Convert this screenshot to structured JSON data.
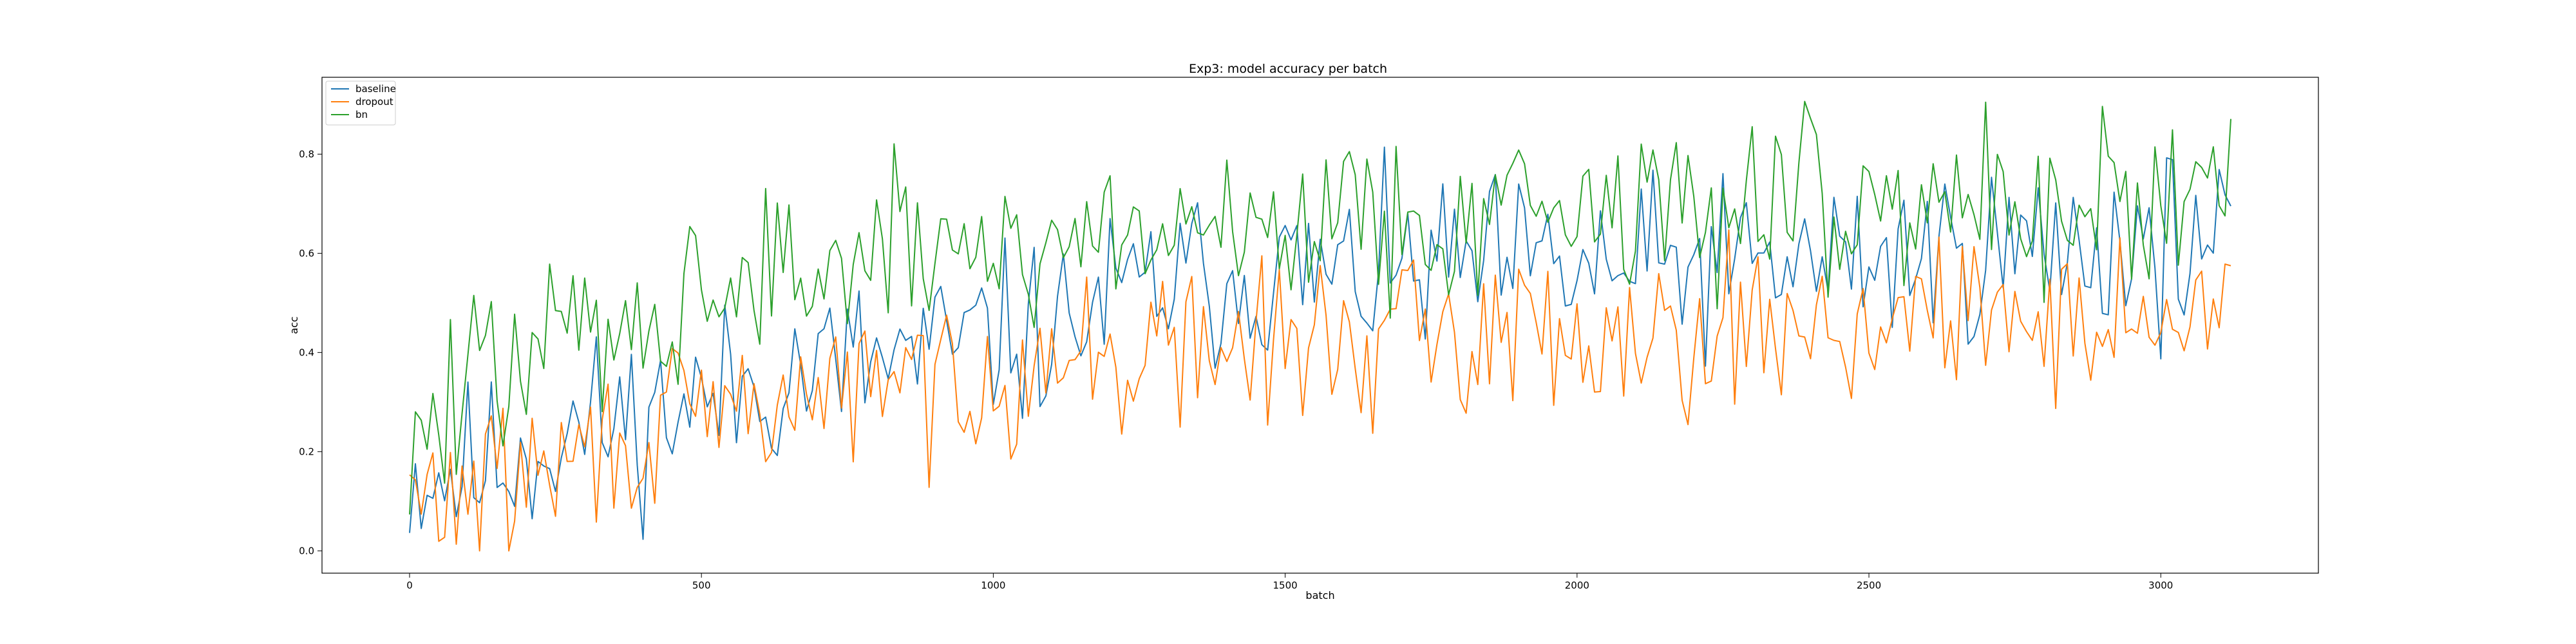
{
  "chart_data": {
    "type": "line",
    "title": "Exp3: model accuracy per batch",
    "xlabel": "batch",
    "ylabel": "acc",
    "xlim": [
      -150,
      3270
    ],
    "ylim": [
      -0.045,
      0.955
    ],
    "xticks": [
      0,
      500,
      1000,
      1500,
      2000,
      2500,
      3000
    ],
    "yticks": [
      0.0,
      0.2,
      0.4,
      0.6,
      0.8
    ],
    "grid": false,
    "legend_position": "upper-left",
    "x": {
      "start": 0,
      "step": 10,
      "end": 3120
    },
    "series": [
      {
        "name": "baseline",
        "color": "#1f77b4",
        "anchors": [
          [
            0,
            0.15
          ],
          [
            100,
            0.16
          ],
          [
            200,
            0.2
          ],
          [
            300,
            0.25
          ],
          [
            400,
            0.27
          ],
          [
            500,
            0.3
          ],
          [
            600,
            0.34
          ],
          [
            700,
            0.37
          ],
          [
            800,
            0.38
          ],
          [
            900,
            0.4
          ],
          [
            1000,
            0.43
          ],
          [
            1100,
            0.44
          ],
          [
            1200,
            0.5
          ],
          [
            1300,
            0.54
          ],
          [
            1400,
            0.55
          ],
          [
            1500,
            0.56
          ],
          [
            1600,
            0.55
          ],
          [
            1700,
            0.56
          ],
          [
            1800,
            0.57
          ],
          [
            1900,
            0.57
          ],
          [
            2000,
            0.56
          ],
          [
            2200,
            0.57
          ],
          [
            2400,
            0.58
          ],
          [
            2600,
            0.6
          ],
          [
            2800,
            0.61
          ],
          [
            3000,
            0.62
          ],
          [
            3120,
            0.62
          ]
        ],
        "noise": 0.09,
        "seed": 11
      },
      {
        "name": "dropout",
        "color": "#ff7f0e",
        "anchors": [
          [
            0,
            0.1
          ],
          [
            100,
            0.12
          ],
          [
            200,
            0.15
          ],
          [
            300,
            0.19
          ],
          [
            400,
            0.23
          ],
          [
            500,
            0.26
          ],
          [
            600,
            0.29
          ],
          [
            700,
            0.32
          ],
          [
            800,
            0.33
          ],
          [
            900,
            0.34
          ],
          [
            1000,
            0.36
          ],
          [
            1100,
            0.38
          ],
          [
            1200,
            0.39
          ],
          [
            1300,
            0.4
          ],
          [
            1400,
            0.41
          ],
          [
            1500,
            0.42
          ],
          [
            1600,
            0.42
          ],
          [
            1700,
            0.43
          ],
          [
            1800,
            0.44
          ],
          [
            1900,
            0.44
          ],
          [
            2000,
            0.45
          ],
          [
            2200,
            0.45
          ],
          [
            2400,
            0.46
          ],
          [
            2600,
            0.46
          ],
          [
            2800,
            0.47
          ],
          [
            3000,
            0.47
          ],
          [
            3120,
            0.47
          ]
        ],
        "noise": 0.08,
        "seed": 29
      },
      {
        "name": "bn",
        "color": "#2ca02c",
        "anchors": [
          [
            0,
            0.2
          ],
          [
            100,
            0.32
          ],
          [
            200,
            0.4
          ],
          [
            300,
            0.45
          ],
          [
            400,
            0.49
          ],
          [
            500,
            0.52
          ],
          [
            600,
            0.55
          ],
          [
            700,
            0.57
          ],
          [
            800,
            0.59
          ],
          [
            900,
            0.61
          ],
          [
            1000,
            0.62
          ],
          [
            1100,
            0.63
          ],
          [
            1200,
            0.64
          ],
          [
            1300,
            0.65
          ],
          [
            1400,
            0.66
          ],
          [
            1500,
            0.67
          ],
          [
            1600,
            0.67
          ],
          [
            1700,
            0.68
          ],
          [
            1800,
            0.68
          ],
          [
            1900,
            0.69
          ],
          [
            2000,
            0.69
          ],
          [
            2200,
            0.7
          ],
          [
            2400,
            0.7
          ],
          [
            2600,
            0.71
          ],
          [
            2800,
            0.71
          ],
          [
            3000,
            0.71
          ],
          [
            3120,
            0.71
          ]
        ],
        "noise": 0.09,
        "seed": 47
      }
    ]
  }
}
